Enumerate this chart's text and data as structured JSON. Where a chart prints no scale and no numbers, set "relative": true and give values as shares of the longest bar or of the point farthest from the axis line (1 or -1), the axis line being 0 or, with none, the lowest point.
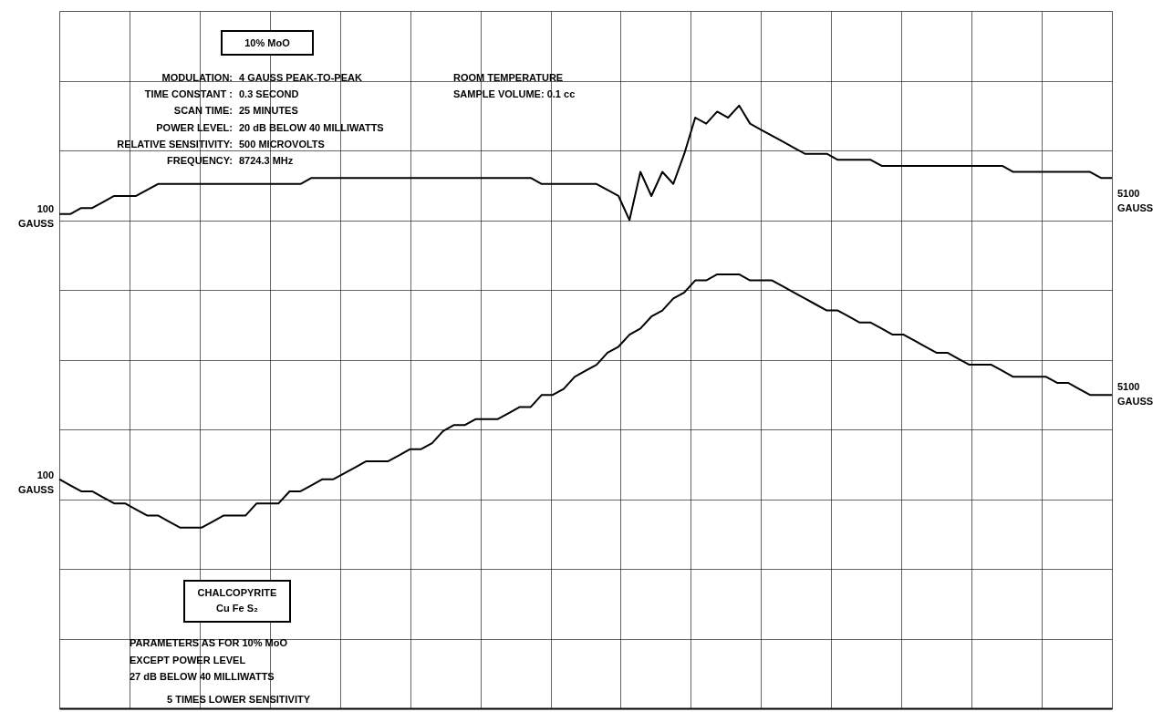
{
  "chart_data": {
    "type": "line",
    "relative": true,
    "tick_labels": false,
    "grid": true,
    "marker": "none",
    "line_style": "solid",
    "categories": [
      null,
      null,
      null,
      null,
      null,
      null,
      null,
      null,
      null,
      null,
      null,
      null,
      null,
      null,
      null,
      null,
      null,
      null,
      null,
      null,
      null,
      null,
      null,
      null,
      null,
      null,
      null,
      null,
      null,
      null,
      null,
      null,
      null,
      null,
      null,
      null,
      null,
      null,
      null,
      null,
      null,
      null,
      null,
      null,
      null,
      null,
      null,
      null,
      null,
      null,
      null,
      null,
      null,
      null,
      null,
      null,
      null,
      null,
      null,
      null,
      null,
      null,
      null,
      null,
      null,
      null,
      null,
      null,
      null,
      null,
      null,
      null,
      null,
      null,
      null,
      null,
      null,
      null,
      null,
      null,
      null,
      null,
      null,
      null,
      null,
      null,
      null,
      null,
      null,
      null,
      null,
      null,
      null,
      null,
      null,
      null,
      null
    ],
    "series": [
      {
        "color": "#000000",
        "values": [
          0.82,
          0.82,
          0.83,
          0.83,
          0.84,
          0.85,
          0.85,
          0.85,
          0.86,
          0.87,
          0.87,
          0.87,
          0.87,
          0.87,
          0.87,
          0.87,
          0.87,
          0.87,
          0.87,
          0.87,
          0.87,
          0.87,
          0.87,
          0.88,
          0.88,
          0.88,
          0.88,
          0.88,
          0.88,
          0.88,
          0.88,
          0.88,
          0.88,
          0.88,
          0.88,
          0.88,
          0.88,
          0.88,
          0.88,
          0.88,
          0.88,
          0.88,
          0.88,
          0.88,
          0.87,
          0.87,
          0.87,
          0.87,
          0.87,
          0.87,
          0.86,
          0.85,
          0.81,
          0.89,
          0.85,
          0.89,
          0.87,
          0.92,
          0.98,
          0.97,
          0.99,
          0.98,
          1.0,
          0.97,
          0.96,
          0.95,
          0.94,
          0.93,
          0.92,
          0.92,
          0.92,
          0.91,
          0.91,
          0.91,
          0.91,
          0.9,
          0.9,
          0.9,
          0.9,
          0.9,
          0.9,
          0.9,
          0.9,
          0.9,
          0.9,
          0.9,
          0.9,
          0.89,
          0.89,
          0.89,
          0.89,
          0.89,
          0.89,
          0.89,
          0.89,
          0.88,
          0.88
        ]
      },
      {
        "color": "#000000",
        "values": [
          0.38,
          0.37,
          0.36,
          0.36,
          0.35,
          0.34,
          0.34,
          0.33,
          0.32,
          0.32,
          0.31,
          0.3,
          0.3,
          0.3,
          0.31,
          0.32,
          0.32,
          0.32,
          0.34,
          0.34,
          0.34,
          0.36,
          0.36,
          0.37,
          0.38,
          0.38,
          0.39,
          0.4,
          0.41,
          0.41,
          0.41,
          0.42,
          0.43,
          0.43,
          0.44,
          0.46,
          0.47,
          0.47,
          0.48,
          0.48,
          0.48,
          0.49,
          0.5,
          0.5,
          0.52,
          0.52,
          0.53,
          0.55,
          0.56,
          0.57,
          0.59,
          0.6,
          0.62,
          0.63,
          0.65,
          0.66,
          0.68,
          0.69,
          0.71,
          0.71,
          0.72,
          0.72,
          0.72,
          0.71,
          0.71,
          0.71,
          0.7,
          0.69,
          0.68,
          0.67,
          0.66,
          0.66,
          0.65,
          0.64,
          0.64,
          0.63,
          0.62,
          0.62,
          0.61,
          0.6,
          0.59,
          0.59,
          0.58,
          0.57,
          0.57,
          0.57,
          0.56,
          0.55,
          0.55,
          0.55,
          0.55,
          0.54,
          0.54,
          0.53,
          0.52,
          0.52,
          0.52
        ]
      }
    ],
    "annotations": [
      "10% MoO",
      "MODULATION:",
      "4 GAUSS PEAK-TO-PEAK",
      "TIME CONSTANT :",
      "0.3 SECOND",
      "SCAN TIME:",
      "25 MINUTES",
      "POWER LEVEL:",
      "20 dB BELOW 40  MILLIWATTS",
      "RELATIVE SENSITIVITY:",
      "500 MICROVOLTS",
      "FREQUENCY:",
      "8724.3 MHz",
      "ROOM TEMPERATURE",
      "SAMPLE VOLUME:  0.1 cc",
      "CHALCOPYRITE",
      "Cu  Fe S₂",
      "PARAMETERS AS FOR 10% MoO",
      "EXCEPT POWER LEVEL",
      "27 dB BELOW 40  MILLIWATTS",
      "5 TIMES LOWER SENSITIVITY",
      "100\nGAUSS",
      "5100\nGAUSS",
      "100\nGAUSS",
      "5100\nGAUSS"
    ]
  }
}
